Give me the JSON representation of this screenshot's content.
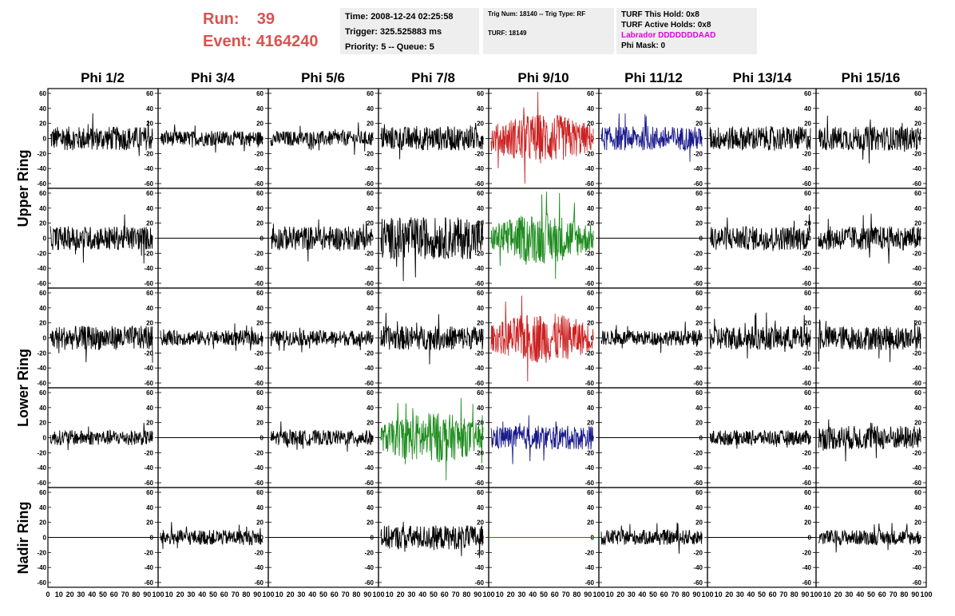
{
  "run_info": {
    "run_label": "Run:",
    "run_value": "39",
    "event_label": "Event:",
    "event_value": "4164240"
  },
  "time_box": {
    "time": "Time: 2008-12-24 02:25:58",
    "trigger": "Trigger: 325.525883 ms",
    "priority": "Priority: 5 -- Queue: 5"
  },
  "trig_box": {
    "trig": "Trig Num: 18140 -- Trig Type: RF",
    "turf": "TURF: 18149"
  },
  "turf_box": {
    "this_hold": "TURF This Hold: 0x8",
    "active_holds": "TURF Active Holds: 0x8",
    "labrador": "Labrador DDDDDDDAAD",
    "phi_mask": "Phi Mask: 0"
  },
  "columns": [
    "Phi 1/2",
    "Phi 3/4",
    "Phi 5/6",
    "Phi 7/8",
    "Phi 9/10",
    "Phi 11/12",
    "Phi 13/14",
    "Phi 15/16"
  ],
  "rings": [
    "Upper Ring",
    "Lower Ring",
    "Nadir Ring"
  ],
  "y_ticks": [
    60,
    40,
    20,
    0,
    -20,
    -40,
    -60
  ],
  "x_ticks": [
    "0",
    "10",
    "20",
    "30",
    "40",
    "50",
    "60",
    "70",
    "80",
    "90",
    "100"
  ],
  "colors": {
    "black": "#000000",
    "red": "#cc2222",
    "blue": "#1a1a8c",
    "green": "#1e8c1e",
    "run_text": "#d9534f",
    "labrador": "#e000e0"
  },
  "chart_data": {
    "type": "line",
    "x_range": [
      0,
      100
    ],
    "y_range": [
      -60,
      60
    ],
    "panels": [
      [
        "black",
        "black",
        "black",
        "black",
        "red",
        "blue",
        "black",
        "black"
      ],
      [
        "black",
        "flat",
        "black",
        "black",
        "green",
        "flat",
        "black",
        "black"
      ],
      [
        "black",
        "black",
        "black",
        "black",
        "red",
        "black",
        "black",
        "black"
      ],
      [
        "black",
        "flat",
        "black",
        "green",
        "blue",
        "flat",
        "black",
        "black"
      ],
      [
        "flat",
        "black",
        "flat",
        "black",
        "flat-red",
        "black",
        "flat",
        "black"
      ]
    ],
    "amplitude_class": [
      [
        "medium",
        "small",
        "small",
        "medium",
        "large",
        "medium",
        "medium",
        "medium"
      ],
      [
        "medium",
        "none",
        "medium",
        "large",
        "large",
        "none",
        "medium",
        "medium"
      ],
      [
        "medium",
        "small",
        "small",
        "medium",
        "large",
        "small",
        "medium",
        "medium"
      ],
      [
        "small",
        "none",
        "small",
        "large",
        "medium",
        "none",
        "small",
        "medium"
      ],
      [
        "none",
        "small",
        "none",
        "medium",
        "none",
        "small",
        "none",
        "small"
      ]
    ]
  }
}
